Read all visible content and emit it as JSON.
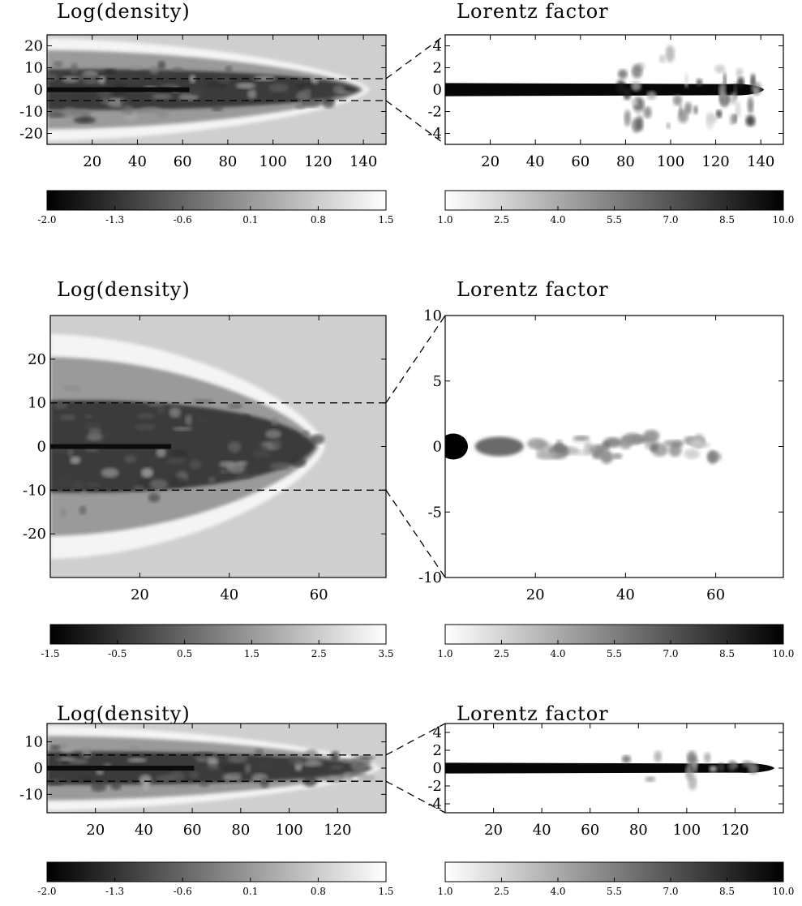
{
  "figure": {
    "panels": [
      {
        "name": "top",
        "density": {
          "title": "Log(density)",
          "xticks": [
            20,
            40,
            60,
            80,
            100,
            120,
            140
          ],
          "yticks": [
            20,
            10,
            0,
            -10,
            -20
          ],
          "xlim": [
            0,
            150
          ],
          "ylim": [
            -25,
            25
          ],
          "jet_length": 140,
          "cocoon_halfwidth": 22,
          "zoom_band": [
            -5,
            5
          ]
        },
        "density_colorbar": {
          "ticks": [
            "-2.0",
            "-1.3",
            "-0.6",
            "0.1",
            "0.8",
            "1.5"
          ],
          "direction": "black-to-white"
        },
        "lorentz": {
          "title": "Lorentz factor",
          "xticks": [
            20,
            40,
            60,
            80,
            100,
            120,
            140
          ],
          "yticks": [
            4,
            2,
            0,
            -2,
            -4
          ],
          "xlim": [
            0,
            150
          ],
          "ylim": [
            -5,
            5
          ],
          "jet_length": 140
        },
        "lorentz_colorbar": {
          "ticks": [
            "1.0",
            "2.5",
            "4.0",
            "5.5",
            "7.0",
            "8.5",
            "10.0"
          ],
          "direction": "white-to-black"
        }
      },
      {
        "name": "middle",
        "density": {
          "title": "Log(density)",
          "xticks": [
            20,
            40,
            60
          ],
          "yticks": [
            20,
            10,
            0,
            -10,
            -20
          ],
          "xlim": [
            0,
            75
          ],
          "ylim": [
            -30,
            30
          ],
          "jet_length": 60,
          "cocoon_halfwidth": 25,
          "zoom_band": [
            -10,
            10
          ]
        },
        "density_colorbar": {
          "ticks": [
            "-1.5",
            "-0.5",
            "0.5",
            "1.5",
            "2.5",
            "3.5"
          ],
          "direction": "black-to-white"
        },
        "lorentz": {
          "title": "Lorentz factor",
          "xticks": [
            20,
            40,
            60
          ],
          "yticks": [
            10,
            5,
            0,
            -5,
            -10
          ],
          "xlim": [
            0,
            75
          ],
          "ylim": [
            -10,
            10
          ],
          "jet_length": 60
        },
        "lorentz_colorbar": {
          "ticks": [
            "1.0",
            "2.5",
            "4.0",
            "5.5",
            "7.0",
            "8.5",
            "10.0"
          ],
          "direction": "white-to-black"
        }
      },
      {
        "name": "bottom",
        "density": {
          "title": "Log(density)",
          "xticks": [
            20,
            40,
            60,
            80,
            100,
            120
          ],
          "yticks": [
            10,
            0,
            -10
          ],
          "xlim": [
            0,
            140
          ],
          "ylim": [
            -17,
            17
          ],
          "jet_length": 135,
          "cocoon_halfwidth": 15,
          "zoom_band": [
            -5,
            5
          ]
        },
        "density_colorbar": {
          "ticks": [
            "-2.0",
            "-1.3",
            "-0.6",
            "0.1",
            "0.8",
            "1.5"
          ],
          "direction": "black-to-white"
        },
        "lorentz": {
          "title": "Lorentz factor",
          "xticks": [
            20,
            40,
            60,
            80,
            100,
            120
          ],
          "yticks": [
            4,
            2,
            0,
            -2,
            -4
          ],
          "xlim": [
            0,
            140
          ],
          "ylim": [
            -5,
            5
          ],
          "jet_length": 135
        },
        "lorentz_colorbar": {
          "ticks": [
            "1.0",
            "2.5",
            "4.0",
            "5.5",
            "7.0",
            "8.5",
            "10.0"
          ],
          "direction": "white-to-black"
        }
      }
    ]
  }
}
